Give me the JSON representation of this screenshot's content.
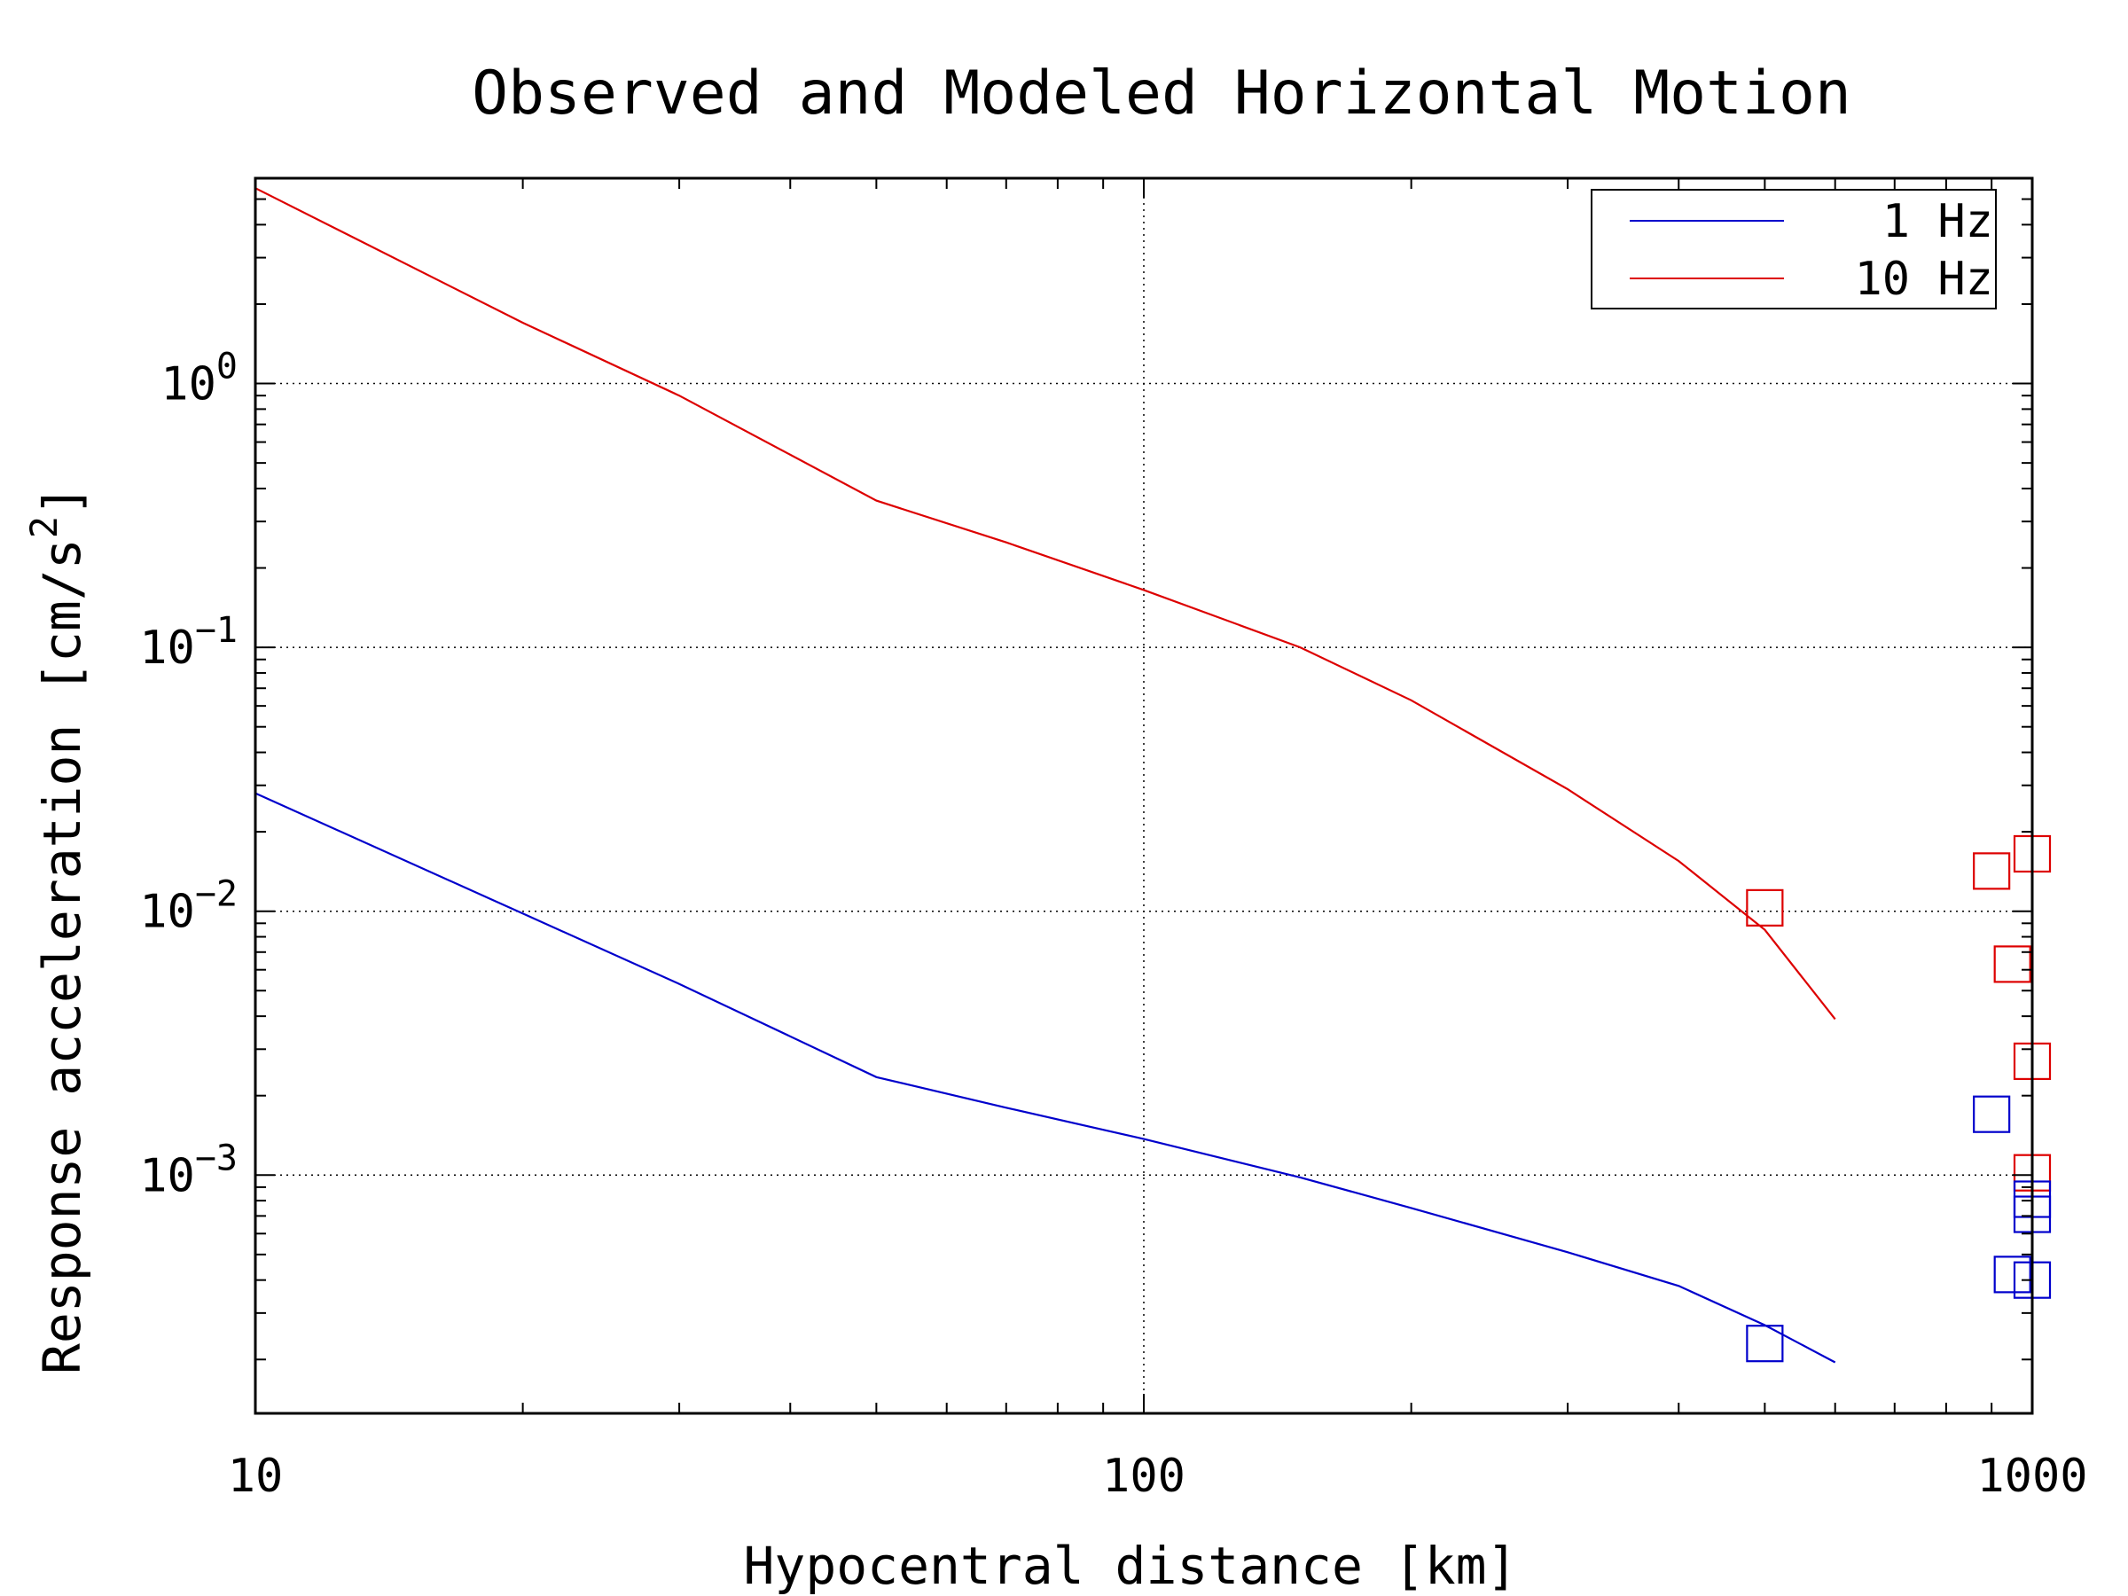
{
  "chart_data": {
    "type": "line",
    "title": "Observed and Modeled Horizontal Motion",
    "xlabel": "Hypocentral distance [km]",
    "ylabel_text": "Response acceleration [cm/s",
    "ylabel_sup": "2",
    "ylabel_close": "]",
    "x_scale": "log",
    "y_scale": "log",
    "xlim": [
      10,
      1000
    ],
    "ylim": [
      0.000125,
      6.0
    ],
    "x_ticks": [
      {
        "value": 10,
        "label": "10"
      },
      {
        "value": 100,
        "label": "100"
      },
      {
        "value": 1000,
        "label": "1000"
      }
    ],
    "y_ticks": [
      {
        "value": 0.001,
        "base": "10",
        "exp": "−3"
      },
      {
        "value": 0.01,
        "base": "10",
        "exp": "−2"
      },
      {
        "value": 0.1,
        "base": "10",
        "exp": "−1"
      },
      {
        "value": 1,
        "base": "10",
        "exp": "0"
      }
    ],
    "grid": true,
    "legend_position": "top-right",
    "series": [
      {
        "name": "1 Hz",
        "color": "#0000cc",
        "x": [
          10,
          20,
          30,
          50,
          70,
          100,
          150,
          200,
          300,
          400,
          500,
          600
        ],
        "y": [
          0.028,
          0.0098,
          0.0053,
          0.00235,
          0.0018,
          0.00137,
          0.00098,
          0.00075,
          0.00051,
          0.00038,
          0.00027,
          0.000195
        ]
      },
      {
        "name": "10 Hz",
        "color": "#dd0000",
        "x": [
          10,
          20,
          30,
          50,
          70,
          100,
          150,
          200,
          300,
          400,
          500,
          600
        ],
        "y": [
          5.5,
          1.7,
          0.9,
          0.36,
          0.25,
          0.165,
          0.1,
          0.063,
          0.029,
          0.0155,
          0.0085,
          0.0039
        ]
      }
    ],
    "observed": [
      {
        "series": "10 Hz",
        "color": "#dd0000",
        "points": [
          [
            500,
            0.0103
          ],
          [
            900,
            0.0142
          ],
          [
            1000,
            0.0165
          ],
          [
            950,
            0.0063
          ],
          [
            1000,
            0.0027
          ],
          [
            1000,
            0.00102
          ]
        ]
      },
      {
        "series": "1 Hz",
        "color": "#0000cc",
        "points": [
          [
            500,
            0.00023
          ],
          [
            900,
            0.0017
          ],
          [
            1000,
            0.00081
          ],
          [
            1000,
            0.00071
          ],
          [
            950,
            0.00042
          ],
          [
            1000,
            0.0004
          ]
        ]
      }
    ]
  }
}
